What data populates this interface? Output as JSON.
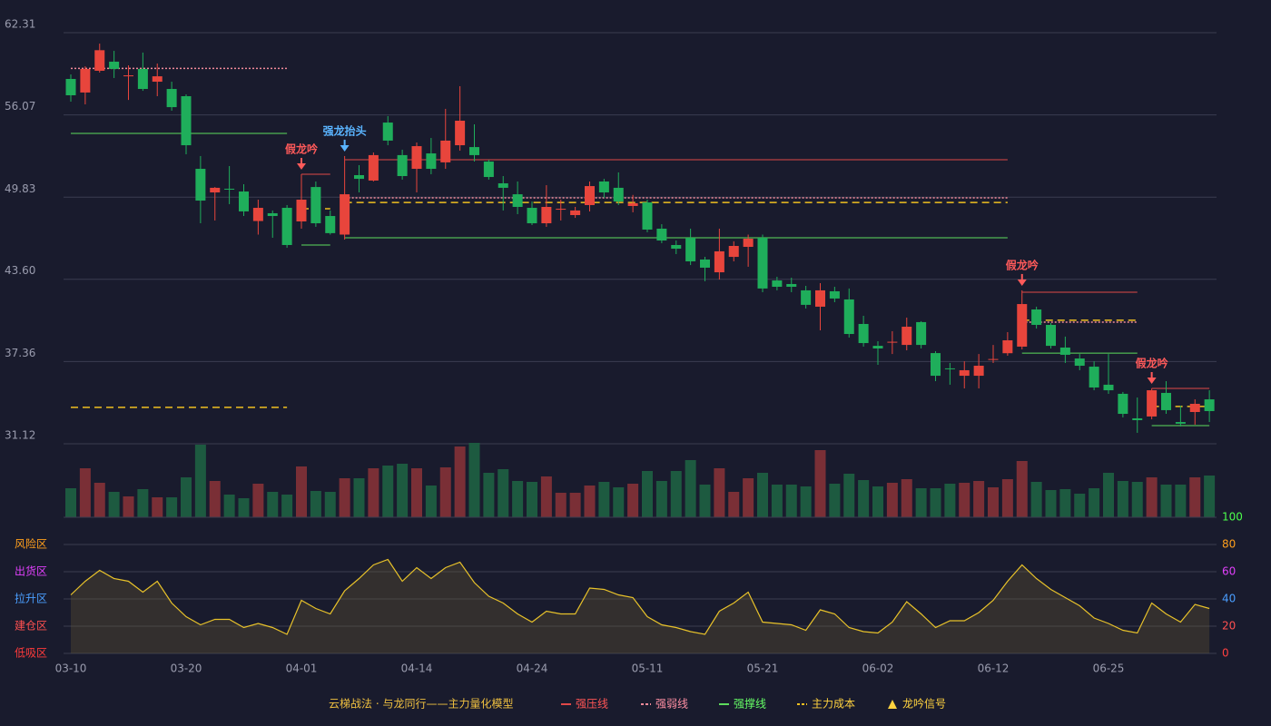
{
  "chart_data": {
    "type": "candlestick",
    "categories": [
      "03-10",
      null,
      null,
      null,
      null,
      null,
      null,
      null,
      "03-20",
      null,
      null,
      null,
      null,
      null,
      null,
      null,
      "04-01",
      null,
      null,
      null,
      null,
      null,
      null,
      null,
      "04-14",
      null,
      null,
      null,
      null,
      null,
      null,
      null,
      "04-24",
      null,
      null,
      null,
      null,
      null,
      null,
      null,
      "05-11",
      null,
      null,
      null,
      null,
      null,
      null,
      null,
      "05-21",
      null,
      null,
      null,
      null,
      null,
      null,
      null,
      "06-02",
      null,
      null,
      null,
      null,
      null,
      null,
      null,
      "06-12",
      null,
      null,
      null,
      null,
      null,
      null,
      null,
      "06-25",
      null,
      null,
      null,
      null,
      null,
      null,
      null
    ],
    "open": [
      58.8,
      57.77,
      59.42,
      60.11,
      59.0,
      59.56,
      58.59,
      58.04,
      57.49,
      51.98,
      50.19,
      50.47,
      50.26,
      48.02,
      48.61,
      49.02,
      47.99,
      50.6,
      48.4,
      46.99,
      51.5,
      51.09,
      55.49,
      53.02,
      51.98,
      53.15,
      52.47,
      53.77,
      53.63,
      52.53,
      50.88,
      50.05,
      49.02,
      47.85,
      48.88,
      48.47,
      49.23,
      51.02,
      50.54,
      49.16,
      49.43,
      47.44,
      46.2,
      46.75,
      45.1,
      44.13,
      45.3,
      46.06,
      46.75,
      43.51,
      43.24,
      42.76,
      41.52,
      42.69,
      42.07,
      40.21,
      38.55,
      38.83,
      38.62,
      40.35,
      38.0,
      36.84,
      36.28,
      36.28,
      37.5,
      37.99,
      38.49,
      41.31,
      40.14,
      38.42,
      37.59,
      36.97,
      35.6,
      34.91,
      33.05,
      33.19,
      34.98,
      32.77,
      33.53,
      34.49
    ],
    "close": [
      57.56,
      59.56,
      60.98,
      59.56,
      59.07,
      58.04,
      59.0,
      56.66,
      53.77,
      49.57,
      50.54,
      50.4,
      48.75,
      49.02,
      48.4,
      46.2,
      49.64,
      47.85,
      47.1,
      50.05,
      51.22,
      53.02,
      54.12,
      51.43,
      53.7,
      51.98,
      54.12,
      55.63,
      53.02,
      51.36,
      50.54,
      49.09,
      47.85,
      49.09,
      48.95,
      48.82,
      50.67,
      50.19,
      49.5,
      49.37,
      47.37,
      46.54,
      45.92,
      44.96,
      44.48,
      45.72,
      46.13,
      46.68,
      42.9,
      43.03,
      43.03,
      41.66,
      42.76,
      42.14,
      39.45,
      38.76,
      38.35,
      38.86,
      40.0,
      38.62,
      36.28,
      36.8,
      36.7,
      37.04,
      37.55,
      38.97,
      41.72,
      40.14,
      38.55,
      37.87,
      37.04,
      35.39,
      35.18,
      33.39,
      32.91,
      35.18,
      33.67,
      32.64,
      34.15,
      33.6
    ],
    "high": [
      59.14,
      59.76,
      61.48,
      60.93,
      59.83,
      60.8,
      59.97,
      58.59,
      57.63,
      52.95,
      50.6,
      52.19,
      50.81,
      49.64,
      48.82,
      49.23,
      51.57,
      51.02,
      48.82,
      52.95,
      52.26,
      53.22,
      55.98,
      53.43,
      53.98,
      54.32,
      56.53,
      58.25,
      55.36,
      52.67,
      51.43,
      51.02,
      49.5,
      50.74,
      49.64,
      49.09,
      51.02,
      51.22,
      51.71,
      50.0,
      49.64,
      47.78,
      46.54,
      47.44,
      45.3,
      47.44,
      46.48,
      46.99,
      46.99,
      43.79,
      43.72,
      43.1,
      43.31,
      43.03,
      42.9,
      40.83,
      38.9,
      39.66,
      40.69,
      40.42,
      38.14,
      37.25,
      37.38,
      37.93,
      38.62,
      39.59,
      42.76,
      41.52,
      40.28,
      39.25,
      37.93,
      37.38,
      37.93,
      35.05,
      34.63,
      35.32,
      35.87,
      34.01,
      34.49,
      35.18
    ],
    "low": [
      57.08,
      56.87,
      59.28,
      58.87,
      57.21,
      57.9,
      57.49,
      56.39,
      53.08,
      47.85,
      48.06,
      49.3,
      48.4,
      46.99,
      46.75,
      45.99,
      47.44,
      47.58,
      46.99,
      46.61,
      50.19,
      51.02,
      53.77,
      51.16,
      50.19,
      51.57,
      51.98,
      53.36,
      52.53,
      51.16,
      48.82,
      48.54,
      47.71,
      47.58,
      48.06,
      48.26,
      48.75,
      49.78,
      49.23,
      48.68,
      47.17,
      46.34,
      45.51,
      44.68,
      43.45,
      43.58,
      44.96,
      44.55,
      42.62,
      42.76,
      42.62,
      41.38,
      39.73,
      41.86,
      39.18,
      38.49,
      37.11,
      37.93,
      38.21,
      38.35,
      35.87,
      35.6,
      35.32,
      35.32,
      37.25,
      37.8,
      38.28,
      39.86,
      38.35,
      37.25,
      36.7,
      35.18,
      34.91,
      33.12,
      31.95,
      32.98,
      33.39,
      32.43,
      32.57,
      32.77
    ],
    "up_color": "#e8453c",
    "down_color": "#1fae5b",
    "volume": [
      32,
      54,
      38,
      28,
      23,
      31,
      22,
      22,
      44,
      80,
      40,
      25,
      21,
      37,
      28,
      25,
      56,
      29,
      28,
      43,
      43,
      54,
      57,
      59,
      54,
      35,
      55,
      78,
      82,
      49,
      53,
      40,
      39,
      45,
      27,
      27,
      35,
      39,
      33,
      37,
      51,
      40,
      51,
      63,
      36,
      54,
      28,
      43,
      49,
      36,
      36,
      34,
      74,
      37,
      48,
      41,
      34,
      38,
      42,
      32,
      32,
      37,
      38,
      40,
      33,
      42,
      62,
      39,
      30,
      31,
      26,
      32,
      49,
      40,
      39,
      44,
      36,
      36,
      44,
      46
    ],
    "volume_up_color": "#7a2f36",
    "volume_down_color": "#1d5a40",
    "ylim": [
      31.12,
      62.31
    ],
    "yticks": [
      31.12,
      37.36,
      {
        "value": 43.6,
        "label": "43.60"
      },
      49.83,
      56.07,
      62.31
    ],
    "grid": true,
    "levels": [
      {
        "name": "强压线",
        "color": "#e04848",
        "text_color": "#ff5555",
        "dash": "solid",
        "segments": [
          {
            "from": 16,
            "to": 18,
            "value": 51.57
          },
          {
            "from": 19,
            "to": 65,
            "value": 52.67
          },
          {
            "from": 66,
            "to": 74,
            "value": 42.62
          },
          {
            "from": 75,
            "to": 79,
            "value": 35.32
          }
        ]
      },
      {
        "name": "强弱线",
        "color": "#f08a9a",
        "text_color": "#ff8fa3",
        "dash": "dotted",
        "segments": [
          {
            "from": 0,
            "to": 15,
            "value": 59.6
          },
          {
            "from": 19,
            "to": 65,
            "value": 49.78
          },
          {
            "from": 66,
            "to": 74,
            "value": 40.35
          }
        ]
      },
      {
        "name": "强撑线",
        "color": "#5ddc5d",
        "text_color": "#66ff66",
        "dash": "solid",
        "segments": [
          {
            "from": 0,
            "to": 15,
            "value": 54.67
          },
          {
            "from": 16,
            "to": 18,
            "value": 46.2
          },
          {
            "from": 19,
            "to": 65,
            "value": 46.75
          },
          {
            "from": 66,
            "to": 74,
            "value": 38.0
          },
          {
            "from": 75,
            "to": 79,
            "value": 32.5
          }
        ]
      },
      {
        "name": "主力成本",
        "color": "#f0c020",
        "text_color": "#ffd23f",
        "dash": "dashed",
        "segments": [
          {
            "from": 0,
            "to": 15,
            "value": 33.88
          },
          {
            "from": 16,
            "to": 18,
            "value": 48.95
          },
          {
            "from": 19,
            "to": 65,
            "value": 49.43
          },
          {
            "from": 66,
            "to": 74,
            "value": 40.49
          },
          {
            "from": 75,
            "to": 79,
            "value": 33.95
          }
        ]
      }
    ],
    "signals": [
      {
        "index": 16,
        "label": "假龙吟",
        "color": "#ff5a5a"
      },
      {
        "index": 19,
        "label": "强龙抬头",
        "color": "#5ab4ff"
      },
      {
        "index": 66,
        "label": "假龙吟",
        "color": "#ff5a5a"
      },
      {
        "index": 75,
        "label": "假龙吟",
        "color": "#ff5a5a"
      }
    ],
    "signal_legend": {
      "name": "龙吟信号",
      "color": "#ffd23f"
    },
    "legend_title": "云梯战法 · 与龙同行——主力量化模型",
    "indicator": {
      "values": [
        43,
        53,
        61,
        55,
        53,
        45,
        53,
        37,
        27,
        21,
        25,
        25,
        19,
        22,
        19,
        14,
        39,
        33,
        29,
        46,
        55,
        65,
        69,
        53,
        63,
        55,
        63,
        67,
        52,
        42,
        37,
        29,
        23,
        31,
        29,
        29,
        48,
        47,
        43,
        41,
        27,
        21,
        19,
        16,
        14,
        31,
        37,
        45,
        23,
        22,
        21,
        17,
        32,
        29,
        19,
        16,
        15,
        23,
        38,
        29,
        19,
        24,
        24,
        30,
        39,
        53,
        65,
        55,
        47,
        41,
        35,
        26,
        22,
        17,
        15,
        37,
        29,
        23,
        36,
        33
      ],
      "color": "#e8c22a",
      "ylim": [
        0,
        100
      ],
      "yticks": [
        0,
        20,
        40,
        60,
        80,
        100
      ],
      "ytick_colors": [
        "#ff4040",
        "#ff5050",
        "#4a9eff",
        "#e040fb",
        "#ff9f1c",
        "#4cff4c"
      ],
      "zones": [
        {
          "label": "风险区",
          "value": 80,
          "color": "#ff9f1c"
        },
        {
          "label": "出货区",
          "value": 60,
          "color": "#e040fb"
        },
        {
          "label": "拉升区",
          "value": 40,
          "color": "#4a9eff"
        },
        {
          "label": "建仓区",
          "value": 20,
          "color": "#ff5050"
        },
        {
          "label": "低吸区",
          "value": 0,
          "color": "#ff3b3b"
        }
      ]
    }
  }
}
